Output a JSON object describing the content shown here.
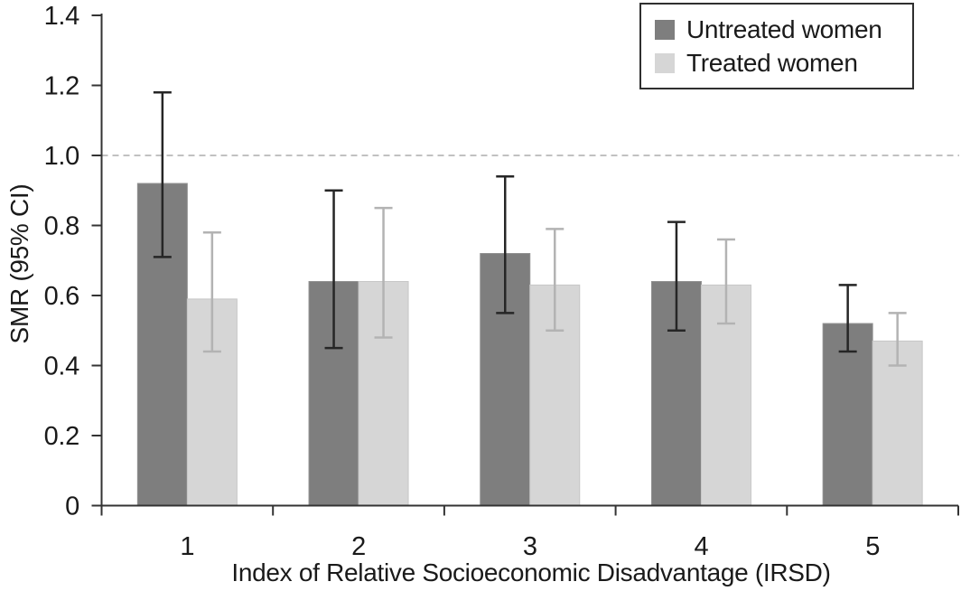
{
  "chart_data": {
    "type": "bar",
    "title": "",
    "xlabel": "Index of Relative Socioeconomic Disadvantage (IRSD)",
    "ylabel": "SMR (95% CI)",
    "categories": [
      "1",
      "2",
      "3",
      "4",
      "5"
    ],
    "series": [
      {
        "name": "Untreated women",
        "color": "#7e7e7e",
        "edge_color": "#919191",
        "error_color": "#262626",
        "values": [
          0.92,
          0.64,
          0.72,
          0.64,
          0.52
        ],
        "ci_low": [
          0.71,
          0.45,
          0.55,
          0.5,
          0.44
        ],
        "ci_high": [
          1.18,
          0.9,
          0.94,
          0.81,
          0.63
        ]
      },
      {
        "name": "Treated women",
        "color": "#d6d6d6",
        "edge_color": "#c7c7c7",
        "error_color": "#b3b3b3",
        "values": [
          0.59,
          0.64,
          0.63,
          0.63,
          0.47
        ],
        "ci_low": [
          0.44,
          0.48,
          0.5,
          0.52,
          0.4
        ],
        "ci_high": [
          0.78,
          0.85,
          0.79,
          0.76,
          0.55
        ]
      }
    ],
    "ylim": [
      0,
      1.4
    ],
    "yticks": [
      0,
      0.2,
      0.4,
      0.6,
      0.8,
      1.0,
      1.2,
      1.4
    ],
    "ytick_labels": [
      "0",
      "0.2",
      "0.4",
      "0.6",
      "0.8",
      "1.0",
      "1.2",
      "1.4"
    ],
    "reference_line": {
      "value": 1.0,
      "style": "dashed",
      "color": "#c1c1c1"
    },
    "legend": {
      "position": "top-right",
      "entries": [
        "Untreated women",
        "Treated women"
      ]
    },
    "grid": false,
    "axis_color": "#333333",
    "error_bars": true
  }
}
